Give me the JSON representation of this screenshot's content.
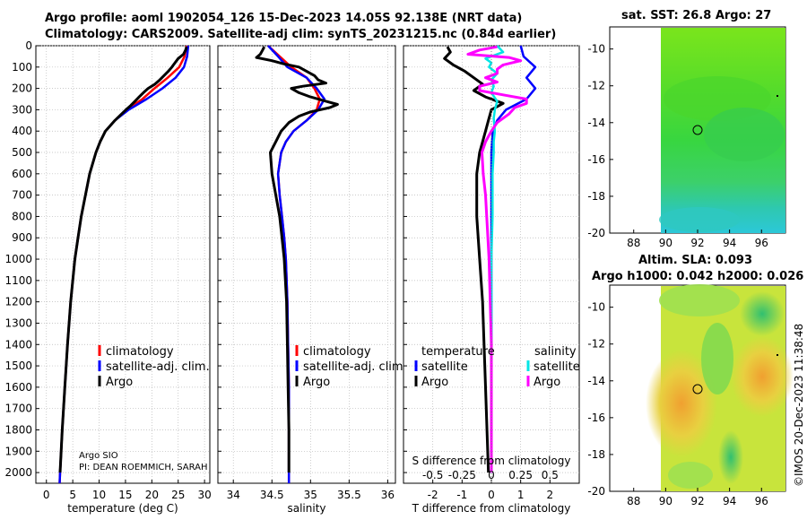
{
  "title_line1": "Argo profile: aoml 1902054_126 15-Dec-2023 14.05S 92.138E (NRT data)",
  "title_line2": "Climatology: CARS2009. Satellite-adj clim: synTS_20231215.nc (0.84d earlier)",
  "map_sst_title": "sat. SST: 26.8 Argo: 27",
  "map_sla_title1": "Altim. SLA: 0.093",
  "map_sla_title2": "Argo h1000: 0.042 h2000: 0.026",
  "watermark": "©IMOS 20-Dec-2023 11:38:48",
  "pi_line1": "Argo SIO",
  "pi_line2": "PI: DEAN ROEMMICH, SARAH",
  "colors": {
    "climatology": "#ff0000",
    "satellite": "#0000ff",
    "argo": "#000000",
    "sal_sat": "#00e5e5",
    "sal_argo": "#ff00ff"
  },
  "chart_data": [
    {
      "type": "line",
      "title": "",
      "xlabel": "temperature (deg C)",
      "ylabel": "",
      "xlim": [
        -2,
        31
      ],
      "ylim": [
        2050,
        0
      ],
      "xticks": [
        0,
        5,
        10,
        15,
        20,
        25,
        30
      ],
      "yticks": [
        0,
        100,
        200,
        300,
        400,
        500,
        600,
        700,
        800,
        900,
        1000,
        1100,
        1200,
        1300,
        1400,
        1500,
        1600,
        1700,
        1800,
        1900,
        2000
      ],
      "legend": [
        "climatology",
        "satellite-adj. clim.",
        "Argo"
      ],
      "series": [
        {
          "name": "climatology",
          "depth": [
            0,
            50,
            100,
            150,
            200,
            250,
            300,
            350,
            400,
            450,
            500,
            600,
            700,
            800,
            900,
            1000,
            1200,
            1400,
            1600,
            1800,
            2000,
            2050
          ],
          "values": [
            26.6,
            26.2,
            25.2,
            23.0,
            20.5,
            18.2,
            15.2,
            13.0,
            11.2,
            10.2,
            9.4,
            8.2,
            7.4,
            6.6,
            6.0,
            5.4,
            4.6,
            4.0,
            3.5,
            3.0,
            2.6,
            2.5
          ]
        },
        {
          "name": "satellite-adj. clim.",
          "depth": [
            0,
            50,
            100,
            150,
            200,
            250,
            300,
            350,
            400,
            450,
            500,
            600,
            700,
            800,
            900,
            1000,
            1200,
            1400,
            1600,
            1800,
            2000,
            2050
          ],
          "values": [
            26.9,
            26.7,
            26.1,
            24.5,
            22.0,
            19.0,
            15.6,
            13.0,
            11.2,
            10.2,
            9.4,
            8.2,
            7.4,
            6.6,
            6.0,
            5.4,
            4.6,
            4.0,
            3.5,
            3.0,
            2.6,
            2.5
          ]
        },
        {
          "name": "Argo",
          "depth": [
            5,
            20,
            40,
            60,
            80,
            100,
            120,
            140,
            160,
            180,
            200,
            220,
            240,
            260,
            280,
            300,
            350,
            400,
            450,
            500,
            600,
            700,
            800,
            900,
            1000,
            1200,
            1400,
            1600,
            1800,
            2000
          ],
          "values": [
            26.6,
            26.4,
            26.0,
            25.0,
            24.4,
            23.8,
            23.1,
            22.3,
            21.5,
            20.6,
            19.3,
            18.4,
            17.6,
            16.8,
            16.0,
            15.1,
            13.0,
            11.2,
            10.2,
            9.4,
            8.2,
            7.4,
            6.6,
            6.0,
            5.4,
            4.6,
            4.0,
            3.5,
            3.0,
            2.6
          ]
        }
      ]
    },
    {
      "type": "line",
      "title": "",
      "xlabel": "salinity",
      "ylabel": "",
      "xlim": [
        33.8,
        36.1
      ],
      "ylim": [
        2050,
        0
      ],
      "xticks": [
        34,
        34.5,
        35,
        35.5,
        36
      ],
      "legend": [
        "climatology",
        "satellite-adj. clim.",
        "Argo"
      ],
      "series": [
        {
          "name": "climatology",
          "depth": [
            0,
            50,
            100,
            150,
            200,
            250,
            300,
            350,
            400,
            450,
            500,
            600,
            700,
            800,
            900,
            1000,
            1200,
            1400,
            1600,
            1800,
            2000,
            2050
          ],
          "values": [
            34.45,
            34.6,
            34.75,
            34.95,
            35.05,
            35.12,
            35.08,
            34.95,
            34.78,
            34.68,
            34.62,
            34.58,
            34.6,
            34.63,
            34.66,
            34.68,
            34.7,
            34.71,
            34.72,
            34.72,
            34.72,
            34.72
          ]
        },
        {
          "name": "satellite-adj. clim.",
          "depth": [
            0,
            50,
            100,
            150,
            200,
            250,
            300,
            350,
            400,
            450,
            500,
            600,
            700,
            800,
            900,
            1000,
            1200,
            1400,
            1600,
            1800,
            2000,
            2050
          ],
          "values": [
            34.45,
            34.58,
            34.7,
            34.95,
            35.08,
            35.18,
            35.1,
            34.95,
            34.78,
            34.68,
            34.62,
            34.58,
            34.6,
            34.63,
            34.66,
            34.68,
            34.7,
            34.71,
            34.72,
            34.72,
            34.72,
            34.72
          ]
        },
        {
          "name": "Argo",
          "depth": [
            5,
            20,
            40,
            55,
            70,
            85,
            100,
            120,
            140,
            160,
            175,
            190,
            200,
            220,
            240,
            260,
            275,
            290,
            310,
            330,
            360,
            400,
            450,
            500,
            600,
            700,
            800,
            900,
            1000,
            1200,
            1400,
            1600,
            1800,
            2000
          ],
          "values": [
            34.4,
            34.38,
            34.35,
            34.3,
            34.5,
            34.65,
            34.85,
            34.95,
            35.05,
            35.1,
            35.2,
            34.9,
            34.75,
            34.85,
            35.0,
            35.2,
            35.35,
            35.25,
            35.0,
            34.85,
            34.72,
            34.62,
            34.55,
            34.48,
            34.5,
            34.55,
            34.6,
            34.63,
            34.66,
            34.69,
            34.7,
            34.71,
            34.72,
            34.72
          ]
        }
      ]
    },
    {
      "type": "line",
      "title": "",
      "xlabel": "T difference from climatology",
      "ylabel": "",
      "xlim": [
        -3,
        3
      ],
      "ylim": [
        2050,
        0
      ],
      "xticks": [
        -2,
        -1,
        0,
        1,
        2
      ],
      "secondary_axis": {
        "label": "S difference from climatology",
        "xlim": [
          -0.75,
          0.75
        ],
        "xticks": [
          -0.5,
          -0.25,
          0,
          0.25,
          0.5
        ],
        "tick_labels": [
          "-0.5",
          "-0.25",
          "0",
          "0.25",
          "0.5"
        ]
      },
      "legend_left": {
        "title": "temperature",
        "entries": [
          "satellite",
          "Argo"
        ]
      },
      "legend_right": {
        "title": "salinity",
        "entries": [
          "satellite",
          "Argo"
        ]
      },
      "series": [
        {
          "name": "T satellite",
          "depth": [
            0,
            50,
            100,
            150,
            200,
            250,
            300,
            350,
            400,
            450,
            500,
            600,
            800,
            1000,
            1200,
            1600,
            2000
          ],
          "values": [
            1.0,
            1.1,
            1.5,
            1.2,
            1.5,
            1.2,
            0.5,
            0.2,
            0.05,
            0.02,
            0.0,
            0.0,
            0.0,
            0.0,
            0.0,
            0.0,
            0.0
          ]
        },
        {
          "name": "T Argo",
          "depth": [
            5,
            30,
            60,
            90,
            120,
            150,
            180,
            210,
            240,
            270,
            300,
            350,
            400,
            450,
            500,
            600,
            800,
            1000,
            1200,
            1600,
            2000
          ],
          "values": [
            -1.5,
            -1.4,
            -1.6,
            -1.3,
            -0.9,
            -0.6,
            -0.3,
            -0.6,
            -0.2,
            0.4,
            0.0,
            -0.1,
            -0.2,
            -0.3,
            -0.4,
            -0.5,
            -0.5,
            -0.4,
            -0.3,
            -0.2,
            -0.1
          ]
        },
        {
          "name": "S satellite",
          "depth": [
            0,
            30,
            60,
            80,
            100,
            130,
            160,
            190,
            220,
            260,
            300,
            340,
            400,
            450,
            500,
            600,
            800,
            1000,
            1200,
            1600,
            2000
          ],
          "values": [
            0.05,
            0.1,
            -0.05,
            0.0,
            -0.02,
            0.05,
            0.0,
            0.02,
            0.0,
            0.05,
            0.03,
            0.02,
            0.03,
            0.02,
            0.02,
            0.01,
            0.01,
            0.0,
            0.0,
            0.0,
            0.0
          ]
        },
        {
          "name": "S Argo",
          "depth": [
            5,
            20,
            40,
            55,
            70,
            90,
            110,
            130,
            150,
            170,
            190,
            210,
            230,
            250,
            270,
            290,
            320,
            360,
            400,
            450,
            500,
            600,
            700,
            800,
            900,
            1000,
            1200,
            1400,
            1600,
            1800,
            2000
          ],
          "values": [
            0.05,
            -0.1,
            -0.2,
            0.15,
            0.25,
            0.1,
            0.05,
            0.05,
            -0.05,
            0.05,
            -0.1,
            -0.1,
            0.1,
            0.3,
            0.3,
            0.2,
            0.15,
            0.05,
            0.0,
            -0.05,
            -0.08,
            -0.07,
            -0.05,
            -0.04,
            -0.03,
            -0.02,
            -0.01,
            0.0,
            0.0,
            0.0,
            0.0
          ]
        }
      ]
    }
  ],
  "maps": [
    {
      "name": "sst-map",
      "xlim": [
        86.5,
        97.5
      ],
      "ylim": [
        -20,
        -8.8
      ],
      "xticks": [
        88,
        90,
        92,
        94,
        96
      ],
      "yticks": [
        -10,
        -12,
        -14,
        -16,
        -18,
        -20
      ],
      "argo_lon": 92.14,
      "argo_lat": -14.05
    },
    {
      "name": "sla-map",
      "xlim": [
        86.5,
        97.5
      ],
      "ylim": [
        -20,
        -8.8
      ],
      "xticks": [
        88,
        90,
        92,
        94,
        96
      ],
      "yticks": [
        -10,
        -12,
        -14,
        -16,
        -18,
        -20
      ],
      "argo_lon": 92.14,
      "argo_lat": -14.05
    }
  ]
}
